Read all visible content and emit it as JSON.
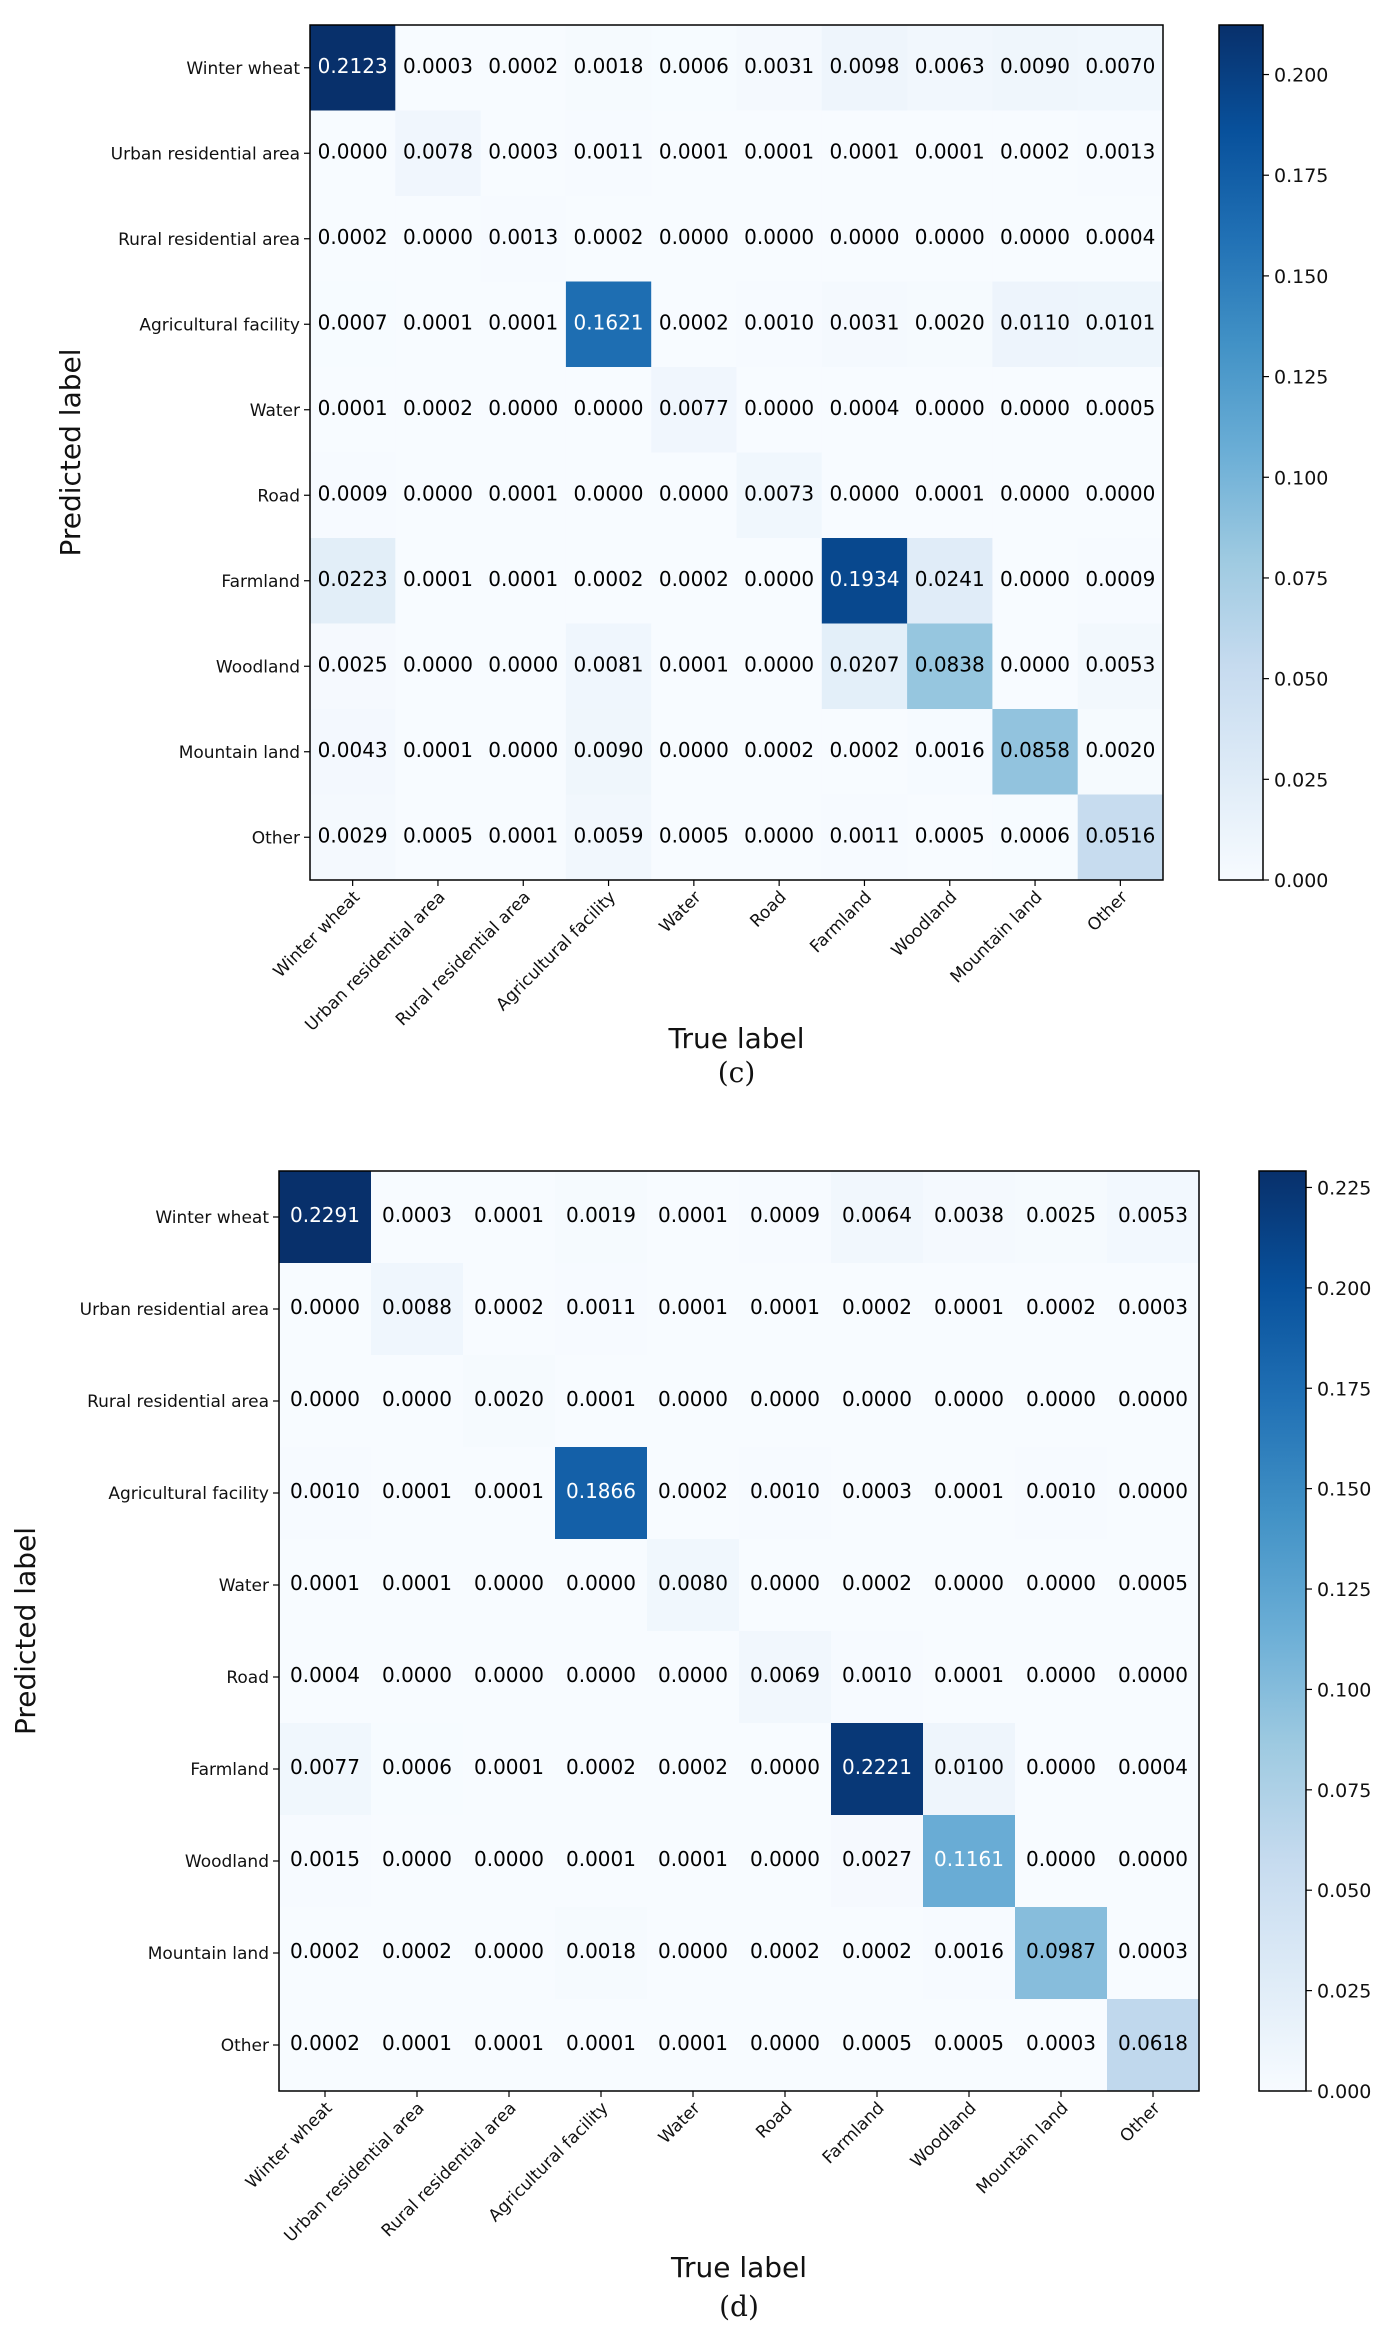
{
  "chart_data": [
    {
      "type": "heatmap",
      "caption": "(c)",
      "xlabel": "True label",
      "ylabel": "Predicted label",
      "row_labels": [
        "Winter wheat",
        "Urban residential area",
        "Rural residential area",
        "Agricultural facility",
        "Water",
        "Road",
        "Farmland",
        "Woodland",
        "Mountain land",
        "Other"
      ],
      "col_labels": [
        "Winter wheat",
        "Urban residential area",
        "Rural residential area",
        "Agricultural facility",
        "Water",
        "Road",
        "Farmland",
        "Woodland",
        "Mountain land",
        "Other"
      ],
      "matrix": [
        [
          "0.2123",
          "0.0003",
          "0.0002",
          "0.0018",
          "0.0006",
          "0.0031",
          "0.0098",
          "0.0063",
          "0.0090",
          "0.0070"
        ],
        [
          "0.0000",
          "0.0078",
          "0.0003",
          "0.0011",
          "0.0001",
          "0.0001",
          "0.0001",
          "0.0001",
          "0.0002",
          "0.0013"
        ],
        [
          "0.0002",
          "0.0000",
          "0.0013",
          "0.0002",
          "0.0000",
          "0.0000",
          "0.0000",
          "0.0000",
          "0.0000",
          "0.0004"
        ],
        [
          "0.0007",
          "0.0001",
          "0.0001",
          "0.1621",
          "0.0002",
          "0.0010",
          "0.0031",
          "0.0020",
          "0.0110",
          "0.0101"
        ],
        [
          "0.0001",
          "0.0002",
          "0.0000",
          "0.0000",
          "0.0077",
          "0.0000",
          "0.0004",
          "0.0000",
          "0.0000",
          "0.0005"
        ],
        [
          "0.0009",
          "0.0000",
          "0.0001",
          "0.0000",
          "0.0000",
          "0.0073",
          "0.0000",
          "0.0001",
          "0.0000",
          "0.0000"
        ],
        [
          "0.0223",
          "0.0001",
          "0.0001",
          "0.0002",
          "0.0002",
          "0.0000",
          "0.1934",
          "0.0241",
          "0.0000",
          "0.0009"
        ],
        [
          "0.0025",
          "0.0000",
          "0.0000",
          "0.0081",
          "0.0001",
          "0.0000",
          "0.0207",
          "0.0838",
          "0.0000",
          "0.0053"
        ],
        [
          "0.0043",
          "0.0001",
          "0.0000",
          "0.0090",
          "0.0000",
          "0.0002",
          "0.0002",
          "0.0016",
          "0.0858",
          "0.0020"
        ],
        [
          "0.0029",
          "0.0005",
          "0.0001",
          "0.0059",
          "0.0005",
          "0.0000",
          "0.0011",
          "0.0005",
          "0.0006",
          "0.0516"
        ]
      ],
      "colorbar": {
        "min": 0,
        "max": 0.2123,
        "ticks": [
          "0.000",
          "0.025",
          "0.050",
          "0.075",
          "0.100",
          "0.125",
          "0.150",
          "0.175",
          "0.200"
        ]
      }
    },
    {
      "type": "heatmap",
      "caption": "(d)",
      "xlabel": "True label",
      "ylabel": "Predicted label",
      "row_labels": [
        "Winter wheat",
        "Urban residential area",
        "Rural residential area",
        "Agricultural facility",
        "Water",
        "Road",
        "Farmland",
        "Woodland",
        "Mountain land",
        "Other"
      ],
      "col_labels": [
        "Winter wheat",
        "Urban residential area",
        "Rural residential area",
        "Agricultural facility",
        "Water",
        "Road",
        "Farmland",
        "Woodland",
        "Mountain land",
        "Other"
      ],
      "matrix": [
        [
          "0.2291",
          "0.0003",
          "0.0001",
          "0.0019",
          "0.0001",
          "0.0009",
          "0.0064",
          "0.0038",
          "0.0025",
          "0.0053"
        ],
        [
          "0.0000",
          "0.0088",
          "0.0002",
          "0.0011",
          "0.0001",
          "0.0001",
          "0.0002",
          "0.0001",
          "0.0002",
          "0.0003"
        ],
        [
          "0.0000",
          "0.0000",
          "0.0020",
          "0.0001",
          "0.0000",
          "0.0000",
          "0.0000",
          "0.0000",
          "0.0000",
          "0.0000"
        ],
        [
          "0.0010",
          "0.0001",
          "0.0001",
          "0.1866",
          "0.0002",
          "0.0010",
          "0.0003",
          "0.0001",
          "0.0010",
          "0.0000"
        ],
        [
          "0.0001",
          "0.0001",
          "0.0000",
          "0.0000",
          "0.0080",
          "0.0000",
          "0.0002",
          "0.0000",
          "0.0000",
          "0.0005"
        ],
        [
          "0.0004",
          "0.0000",
          "0.0000",
          "0.0000",
          "0.0000",
          "0.0069",
          "0.0010",
          "0.0001",
          "0.0000",
          "0.0000"
        ],
        [
          "0.0077",
          "0.0006",
          "0.0001",
          "0.0002",
          "0.0002",
          "0.0000",
          "0.2221",
          "0.0100",
          "0.0000",
          "0.0004"
        ],
        [
          "0.0015",
          "0.0000",
          "0.0000",
          "0.0001",
          "0.0001",
          "0.0000",
          "0.0027",
          "0.1161",
          "0.0000",
          "0.0000"
        ],
        [
          "0.0002",
          "0.0002",
          "0.0000",
          "0.0018",
          "0.0000",
          "0.0002",
          "0.0002",
          "0.0016",
          "0.0987",
          "0.0003"
        ],
        [
          "0.0002",
          "0.0001",
          "0.0001",
          "0.0001",
          "0.0001",
          "0.0000",
          "0.0005",
          "0.0005",
          "0.0003",
          "0.0618"
        ]
      ],
      "colorbar": {
        "min": 0,
        "max": 0.2291,
        "ticks": [
          "0.000",
          "0.025",
          "0.050",
          "0.075",
          "0.100",
          "0.125",
          "0.150",
          "0.175",
          "0.200",
          "0.225"
        ]
      }
    }
  ]
}
